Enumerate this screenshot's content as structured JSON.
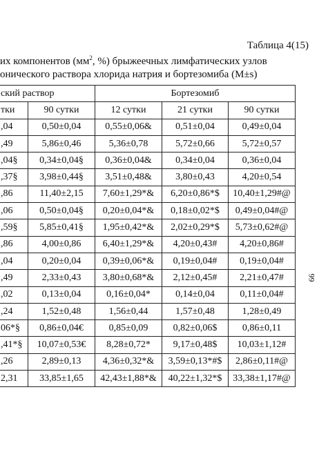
{
  "table_number": "Таблица 4(15)",
  "caption": {
    "line1_pre": "их компонентов (мм",
    "line1_sup": "2",
    "line1_post": ", %) брыжеечных лимфатических узлов",
    "line2": "онического раствора хлорида натрия и бортезомиба (M±s)"
  },
  "group_headers": [
    "ский раствор",
    "Бортезомиб"
  ],
  "day_headers": [
    "тки",
    "90 сутки",
    "12 сутки",
    "21 сутки",
    "90 сутки"
  ],
  "rows": [
    [
      ",04",
      "0,50±0,04",
      "0,55±0,06&",
      "0,51±0,04",
      "0,49±0,04"
    ],
    [
      ",49",
      "5,86±0,46",
      "5,36±0,78",
      "5,72±0,66",
      "5,72±0,57"
    ],
    [
      ",04§",
      "0,34±0,04§",
      "0,36±0,04&",
      "0,34±0,04",
      "0,36±0,04"
    ],
    [
      ",37§",
      "3,98±0,44§",
      "3,51±0,48&",
      "3,80±0,43",
      "4,20±0,54"
    ],
    [
      ",86",
      "11,40±2,15",
      "7,60±1,29*&",
      "6,20±0,86*$",
      "10,40±1,29#@"
    ],
    [
      ",06",
      "0,50±0,04§",
      "0,20±0,04*&",
      "0,18±0,02*$",
      "0,49±0,04#@"
    ],
    [
      ",59§",
      "5,85±0,41§",
      "1,95±0,42*&",
      "2,02±0,29*$",
      "5,73±0,62#@"
    ],
    [
      ",86",
      "4,00±0,86",
      "6,40±1,29*&",
      "4,20±0,43#",
      "4,20±0,86#"
    ],
    [
      ",04",
      "0,20±0,04",
      "0,39±0,06*&",
      "0,19±0,04#",
      "0,19±0,04#"
    ],
    [
      ",49",
      "2,33±0,43",
      "3,80±0,68*&",
      "2,12±0,45#",
      "2,21±0,47#"
    ],
    [
      ",02",
      "0,13±0,04",
      "0,16±0,04*",
      "0,14±0,04",
      "0,11±0,04#"
    ],
    [
      ",24",
      "1,52±0,48",
      "1,56±0,44",
      "1,57±0,48",
      "1,28±0,49"
    ],
    [
      "06*§",
      "0,86±0,04€",
      "0,85±0,09",
      "0,82±0,06$",
      "0,86±0,11"
    ],
    [
      ",41*§",
      "10,07±0,53€",
      "8,28±0,72*",
      "9,17±0,48$",
      "10,03±1,12#"
    ],
    [
      ",26",
      "2,89±0,13",
      "4,36±0,32*&",
      "3,59±0,13*#$",
      "2,86±0,11#@"
    ],
    [
      "2,31",
      "33,85±1,65",
      "42,43±1,88*&",
      "40,22±1,32*$",
      "33,38±1,17#@"
    ]
  ],
  "page_number": "99"
}
